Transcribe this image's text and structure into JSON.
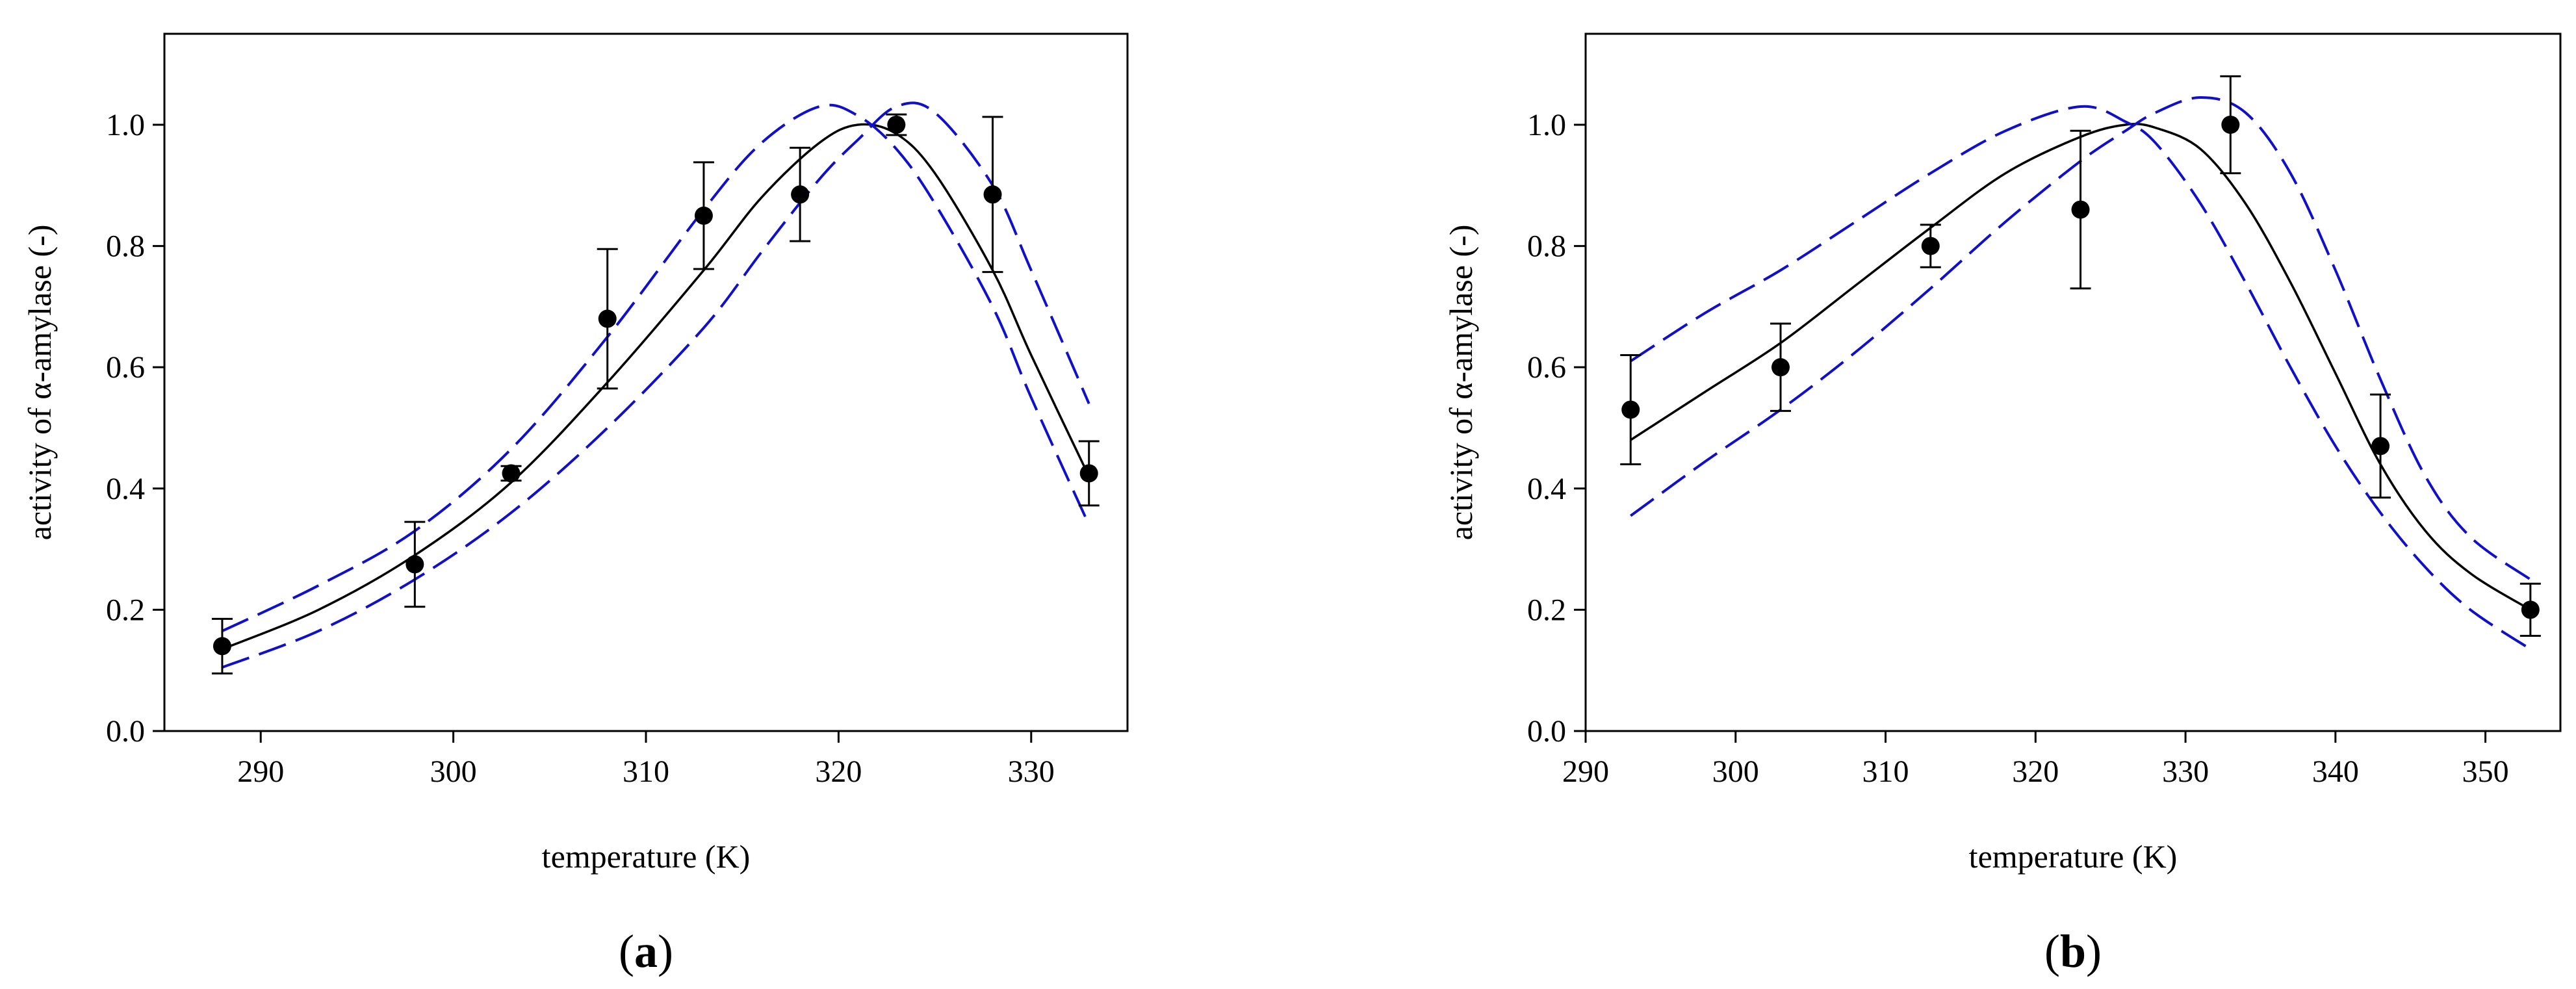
{
  "chart_data": [
    {
      "panel": "a",
      "panel_label": {
        "open": "(",
        "letter": "a",
        "close": ")"
      },
      "type": "scatter",
      "xlabel": "temperature (K)",
      "ylabel": "activity of  α-amylase (-)",
      "xlim": [
        285,
        335
      ],
      "ylim": [
        0,
        1.15
      ],
      "xticks": [
        290,
        300,
        310,
        320,
        330
      ],
      "yticks": [
        0.0,
        0.2,
        0.4,
        0.6,
        0.8,
        1.0
      ],
      "xtick_labels": [
        "290",
        "300",
        "310",
        "320",
        "330"
      ],
      "ytick_labels": [
        "0.0",
        "0.2",
        "0.4",
        "0.6",
        "0.8",
        "1.0"
      ],
      "points": [
        {
          "x": 288,
          "y": 0.14,
          "err": 0.045
        },
        {
          "x": 298,
          "y": 0.275,
          "err": 0.07
        },
        {
          "x": 303,
          "y": 0.425,
          "err": 0.012
        },
        {
          "x": 308,
          "y": 0.68,
          "err": 0.115
        },
        {
          "x": 313,
          "y": 0.85,
          "err": 0.088
        },
        {
          "x": 318,
          "y": 0.885,
          "err": 0.077
        },
        {
          "x": 323,
          "y": 1.0,
          "err": 0.017
        },
        {
          "x": 328,
          "y": 0.885,
          "err": 0.128
        },
        {
          "x": 333,
          "y": 0.425,
          "err": 0.053
        }
      ],
      "series": [
        {
          "name": "model fit",
          "style": "solid",
          "color": "#000000",
          "x": [
            288,
            293,
            298,
            303,
            308,
            313,
            316,
            319,
            321,
            323,
            325,
            328,
            330,
            333
          ],
          "y": [
            0.135,
            0.2,
            0.29,
            0.41,
            0.575,
            0.76,
            0.88,
            0.97,
            1.0,
            0.985,
            0.92,
            0.76,
            0.62,
            0.42
          ]
        },
        {
          "name": "upper confidence bound",
          "style": "dashed",
          "color": "#1010cc",
          "x": [
            288,
            293,
            298,
            303,
            308,
            313,
            316,
            319,
            321,
            323,
            325,
            328,
            330,
            333
          ],
          "y": [
            0.165,
            0.24,
            0.33,
            0.465,
            0.65,
            0.86,
            0.97,
            1.03,
            1.015,
            0.96,
            0.87,
            0.7,
            0.55,
            0.34
          ]
        },
        {
          "name": "lower confidence bound",
          "style": "dashed",
          "color": "#1010cc",
          "x": [
            288,
            293,
            298,
            303,
            308,
            313,
            316,
            319,
            321,
            323,
            325,
            328,
            330,
            333
          ],
          "y": [
            0.105,
            0.165,
            0.25,
            0.36,
            0.5,
            0.665,
            0.79,
            0.91,
            0.975,
            1.03,
            1.02,
            0.9,
            0.76,
            0.54
          ]
        }
      ]
    },
    {
      "panel": "b",
      "panel_label": {
        "open": "(",
        "letter": "b",
        "close": ")"
      },
      "type": "scatter",
      "xlabel": "temperature (K)",
      "ylabel": "activity of  α-amylase (-)",
      "xlim": [
        290,
        355
      ],
      "ylim": [
        0,
        1.15
      ],
      "xticks": [
        290,
        300,
        310,
        320,
        330,
        340,
        350
      ],
      "yticks": [
        0.0,
        0.2,
        0.4,
        0.6,
        0.8,
        1.0
      ],
      "xtick_labels": [
        "290",
        "300",
        "310",
        "320",
        "330",
        "340",
        "350"
      ],
      "ytick_labels": [
        "0.0",
        "0.2",
        "0.4",
        "0.6",
        "0.8",
        "1.0"
      ],
      "points": [
        {
          "x": 293,
          "y": 0.53,
          "err": 0.09
        },
        {
          "x": 303,
          "y": 0.6,
          "err": 0.072
        },
        {
          "x": 313,
          "y": 0.8,
          "err": 0.035
        },
        {
          "x": 323,
          "y": 0.86,
          "err": 0.13
        },
        {
          "x": 333,
          "y": 1.0,
          "err": 0.08
        },
        {
          "x": 343,
          "y": 0.47,
          "err": 0.085
        },
        {
          "x": 353,
          "y": 0.2,
          "err": 0.043
        }
      ],
      "series": [
        {
          "name": "model fit",
          "style": "solid",
          "color": "#000000",
          "x": [
            293,
            298,
            303,
            308,
            313,
            318,
            323,
            326,
            328,
            331,
            334,
            337,
            340,
            343,
            346,
            349,
            353
          ],
          "y": [
            0.48,
            0.56,
            0.64,
            0.735,
            0.83,
            0.92,
            0.98,
            1.0,
            0.995,
            0.96,
            0.87,
            0.74,
            0.59,
            0.44,
            0.33,
            0.26,
            0.2
          ]
        },
        {
          "name": "upper confidence bound",
          "style": "dashed",
          "color": "#1010cc",
          "x": [
            293,
            298,
            303,
            308,
            313,
            318,
            323,
            326,
            328,
            331,
            334,
            337,
            340,
            343,
            346,
            349,
            353
          ],
          "y": [
            0.61,
            0.69,
            0.76,
            0.84,
            0.92,
            0.99,
            1.03,
            1.005,
            0.97,
            0.87,
            0.74,
            0.6,
            0.47,
            0.36,
            0.27,
            0.2,
            0.135
          ]
        },
        {
          "name": "lower confidence bound",
          "style": "dashed",
          "color": "#1010cc",
          "x": [
            293,
            298,
            303,
            308,
            313,
            318,
            323,
            326,
            328,
            331,
            334,
            337,
            340,
            343,
            346,
            349,
            353
          ],
          "y": [
            0.355,
            0.445,
            0.53,
            0.625,
            0.73,
            0.84,
            0.94,
            0.99,
            1.02,
            1.045,
            1.02,
            0.92,
            0.76,
            0.58,
            0.42,
            0.32,
            0.25
          ]
        }
      ]
    }
  ]
}
